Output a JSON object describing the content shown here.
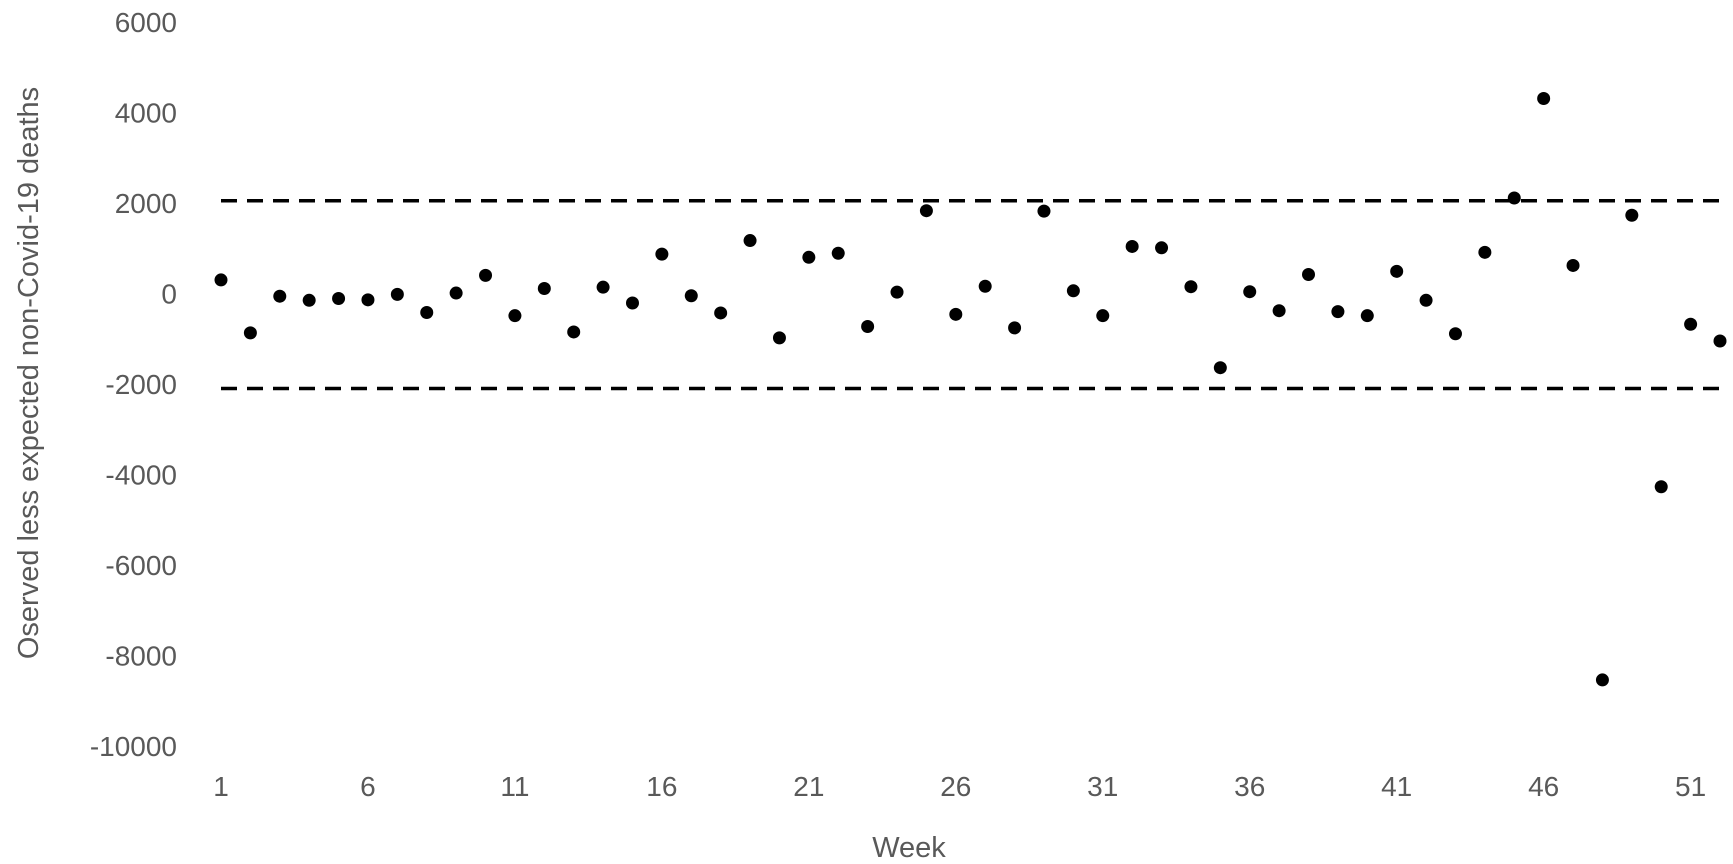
{
  "chart_data": {
    "type": "scatter",
    "xlabel": "Week",
    "ylabel": "Oserved less expected non-Covid-19 deaths",
    "xlim": [
      1,
      52
    ],
    "ylim": [
      -10000,
      6000
    ],
    "x_ticks": [
      1,
      6,
      11,
      16,
      21,
      26,
      31,
      36,
      41,
      46,
      51
    ],
    "y_ticks": [
      6000,
      4000,
      2000,
      0,
      -2000,
      -4000,
      -6000,
      -8000,
      -10000
    ],
    "grid": false,
    "legend": "none",
    "reference_lines": [
      {
        "y": 2050,
        "style": "dashed"
      },
      {
        "y": -2100,
        "style": "dashed"
      }
    ],
    "points": [
      {
        "x": 1,
        "y": 300
      },
      {
        "x": 2,
        "y": -870
      },
      {
        "x": 3,
        "y": -60
      },
      {
        "x": 4,
        "y": -150
      },
      {
        "x": 5,
        "y": -110
      },
      {
        "x": 6,
        "y": -140
      },
      {
        "x": 7,
        "y": -20
      },
      {
        "x": 8,
        "y": -420
      },
      {
        "x": 9,
        "y": 10
      },
      {
        "x": 10,
        "y": 400
      },
      {
        "x": 11,
        "y": -490
      },
      {
        "x": 12,
        "y": 110
      },
      {
        "x": 13,
        "y": -850
      },
      {
        "x": 14,
        "y": 140
      },
      {
        "x": 15,
        "y": -210
      },
      {
        "x": 16,
        "y": 870
      },
      {
        "x": 17,
        "y": -50
      },
      {
        "x": 18,
        "y": -430
      },
      {
        "x": 19,
        "y": 1170
      },
      {
        "x": 20,
        "y": -980
      },
      {
        "x": 21,
        "y": 800
      },
      {
        "x": 22,
        "y": 890
      },
      {
        "x": 23,
        "y": -730
      },
      {
        "x": 24,
        "y": 30
      },
      {
        "x": 25,
        "y": 1830
      },
      {
        "x": 26,
        "y": -460
      },
      {
        "x": 27,
        "y": 160
      },
      {
        "x": 28,
        "y": -760
      },
      {
        "x": 29,
        "y": 1820
      },
      {
        "x": 30,
        "y": 60
      },
      {
        "x": 31,
        "y": -490
      },
      {
        "x": 32,
        "y": 1040
      },
      {
        "x": 33,
        "y": 1010
      },
      {
        "x": 34,
        "y": 150
      },
      {
        "x": 35,
        "y": -1640
      },
      {
        "x": 36,
        "y": 40
      },
      {
        "x": 37,
        "y": -380
      },
      {
        "x": 38,
        "y": 420
      },
      {
        "x": 39,
        "y": -400
      },
      {
        "x": 40,
        "y": -490
      },
      {
        "x": 41,
        "y": 490
      },
      {
        "x": 42,
        "y": -150
      },
      {
        "x": 43,
        "y": -890
      },
      {
        "x": 44,
        "y": 910
      },
      {
        "x": 45,
        "y": 2110
      },
      {
        "x": 46,
        "y": 4310
      },
      {
        "x": 47,
        "y": 620
      },
      {
        "x": 48,
        "y": -8540
      },
      {
        "x": 49,
        "y": 1730
      },
      {
        "x": 50,
        "y": -4270
      },
      {
        "x": 51,
        "y": -680
      },
      {
        "x": 52,
        "y": -1050
      }
    ],
    "colors": {
      "points": "#000000",
      "reference_lines": "#000000",
      "text": "#595959"
    }
  }
}
